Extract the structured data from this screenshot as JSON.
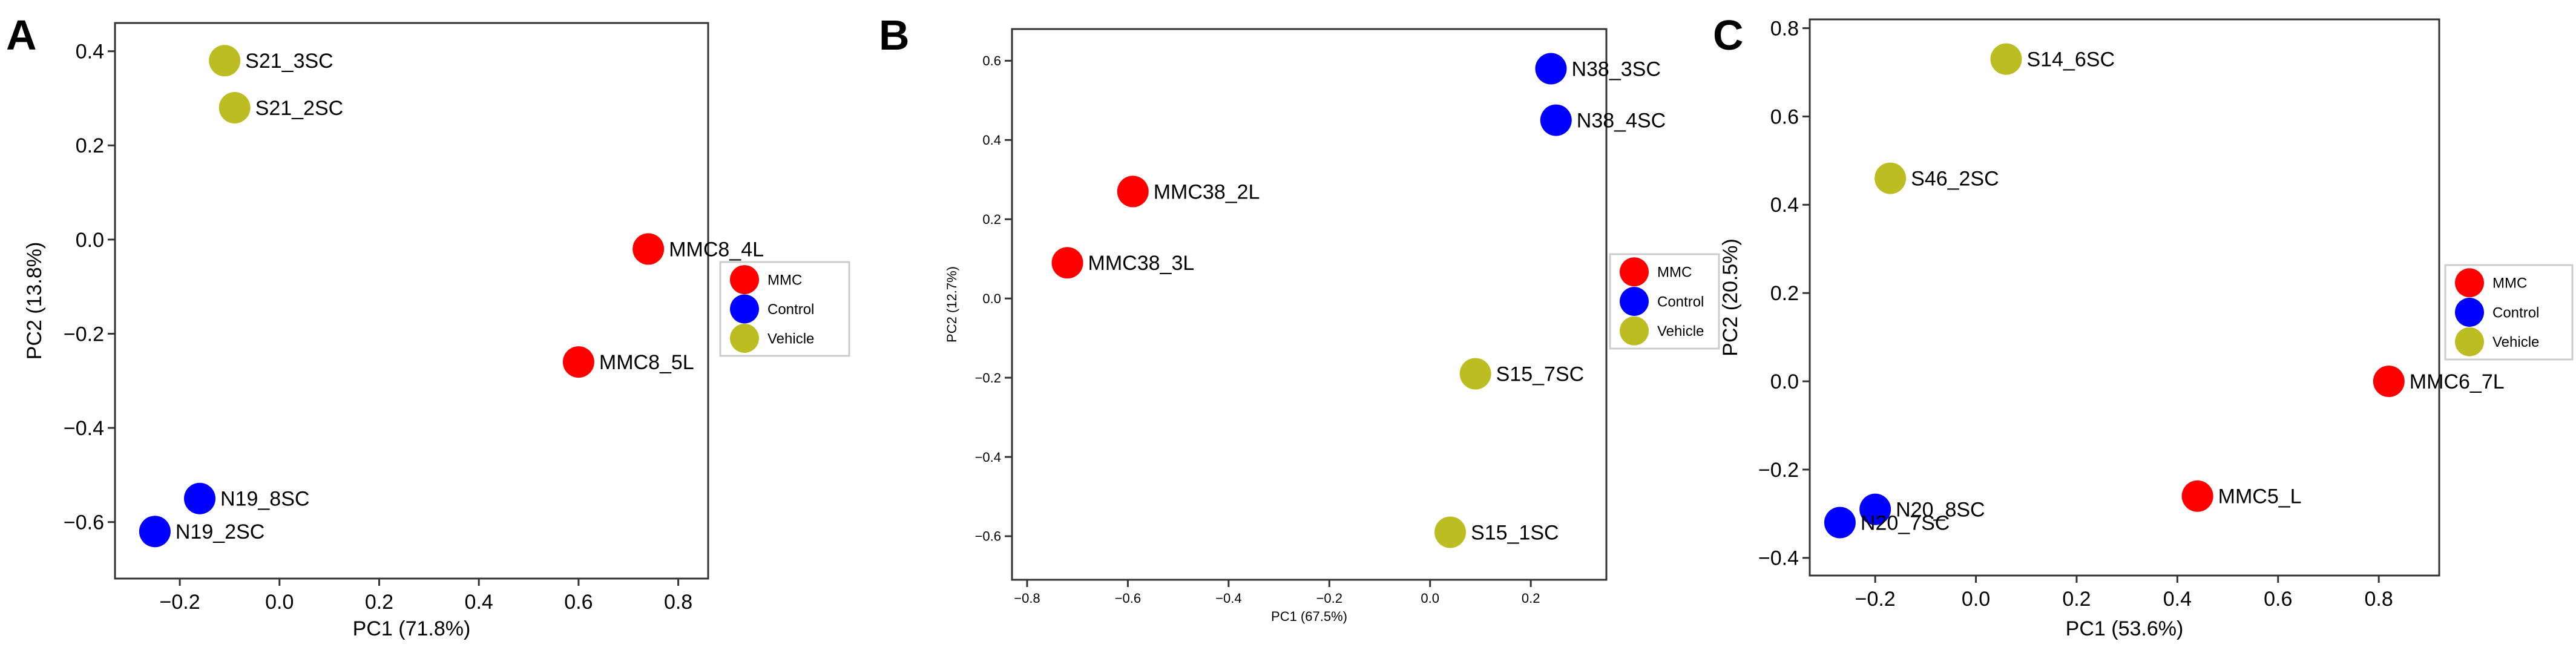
{
  "chart_data": [
    {
      "type": "scatter",
      "panel_label": "A",
      "xlabel": "PC1 (71.8%)",
      "ylabel": "PC2 (13.8%)",
      "xlim": [
        -0.33,
        0.86
      ],
      "ylim": [
        -0.72,
        0.46
      ],
      "xticks": [
        -0.2,
        0.0,
        0.2,
        0.4,
        0.6,
        0.8
      ],
      "yticks": [
        -0.6,
        -0.4,
        -0.2,
        0.0,
        0.2,
        0.4
      ],
      "tick_decimals": 1,
      "legend_position": "right-middle",
      "series": [
        {
          "name": "MMC",
          "color": "#ff0000",
          "points": [
            {
              "x": 0.74,
              "y": -0.02,
              "label": "MMC8_4L"
            },
            {
              "x": 0.6,
              "y": -0.26,
              "label": "MMC8_5L"
            }
          ]
        },
        {
          "name": "Control",
          "color": "#0000ff",
          "points": [
            {
              "x": -0.16,
              "y": -0.55,
              "label": "N19_8SC"
            },
            {
              "x": -0.25,
              "y": -0.62,
              "label": "N19_2SC"
            }
          ]
        },
        {
          "name": "Vehicle",
          "color": "#bcbd22",
          "points": [
            {
              "x": -0.11,
              "y": 0.38,
              "label": "S21_3SC"
            },
            {
              "x": -0.09,
              "y": 0.28,
              "label": "S21_2SC"
            }
          ]
        }
      ]
    },
    {
      "type": "scatter",
      "panel_label": "B",
      "xlabel": "PC1 (67.5%)",
      "ylabel": "PC2 (12.7%)",
      "xlim": [
        -0.83,
        0.35
      ],
      "ylim": [
        -0.71,
        0.68
      ],
      "xticks": [
        -0.8,
        -0.6,
        -0.4,
        -0.2,
        0.0,
        0.2
      ],
      "yticks": [
        -0.6,
        -0.4,
        -0.2,
        0.0,
        0.2,
        0.4,
        0.6
      ],
      "tick_decimals": 1,
      "legend_position": "right-middle",
      "series": [
        {
          "name": "MMC",
          "color": "#ff0000",
          "points": [
            {
              "x": -0.59,
              "y": 0.27,
              "label": "MMC38_2L"
            },
            {
              "x": -0.72,
              "y": 0.09,
              "label": "MMC38_3L"
            }
          ]
        },
        {
          "name": "Control",
          "color": "#0000ff",
          "points": [
            {
              "x": 0.24,
              "y": 0.58,
              "label": "N38_3SC"
            },
            {
              "x": 0.25,
              "y": 0.45,
              "label": "N38_4SC"
            }
          ]
        },
        {
          "name": "Vehicle",
          "color": "#bcbd22",
          "points": [
            {
              "x": 0.09,
              "y": -0.19,
              "label": "S15_7SC"
            },
            {
              "x": 0.04,
              "y": -0.59,
              "label": "S15_1SC"
            }
          ]
        }
      ]
    },
    {
      "type": "scatter",
      "panel_label": "C",
      "xlabel": "PC1 (53.6%)",
      "ylabel": "PC2 (20.5%)",
      "xlim": [
        -0.33,
        0.92
      ],
      "ylim": [
        -0.44,
        0.82
      ],
      "xticks": [
        -0.2,
        0.0,
        0.2,
        0.4,
        0.6,
        0.8
      ],
      "yticks": [
        -0.4,
        -0.2,
        0.0,
        0.2,
        0.4,
        0.6,
        0.8
      ],
      "tick_decimals": 1,
      "legend_position": "right-middle",
      "series": [
        {
          "name": "MMC",
          "color": "#ff0000",
          "points": [
            {
              "x": 0.82,
              "y": 0.0,
              "label": "MMC6_7L"
            },
            {
              "x": 0.44,
              "y": -0.26,
              "label": "MMC5_L"
            }
          ]
        },
        {
          "name": "Control",
          "color": "#0000ff",
          "points": [
            {
              "x": -0.2,
              "y": -0.29,
              "label": "N20_8SC"
            },
            {
              "x": -0.27,
              "y": -0.32,
              "label": "N20_7SC"
            }
          ]
        },
        {
          "name": "Vehicle",
          "color": "#bcbd22",
          "points": [
            {
              "x": 0.06,
              "y": 0.73,
              "label": "S14_6SC"
            },
            {
              "x": -0.17,
              "y": 0.46,
              "label": "S46_2SC"
            }
          ]
        }
      ]
    }
  ]
}
